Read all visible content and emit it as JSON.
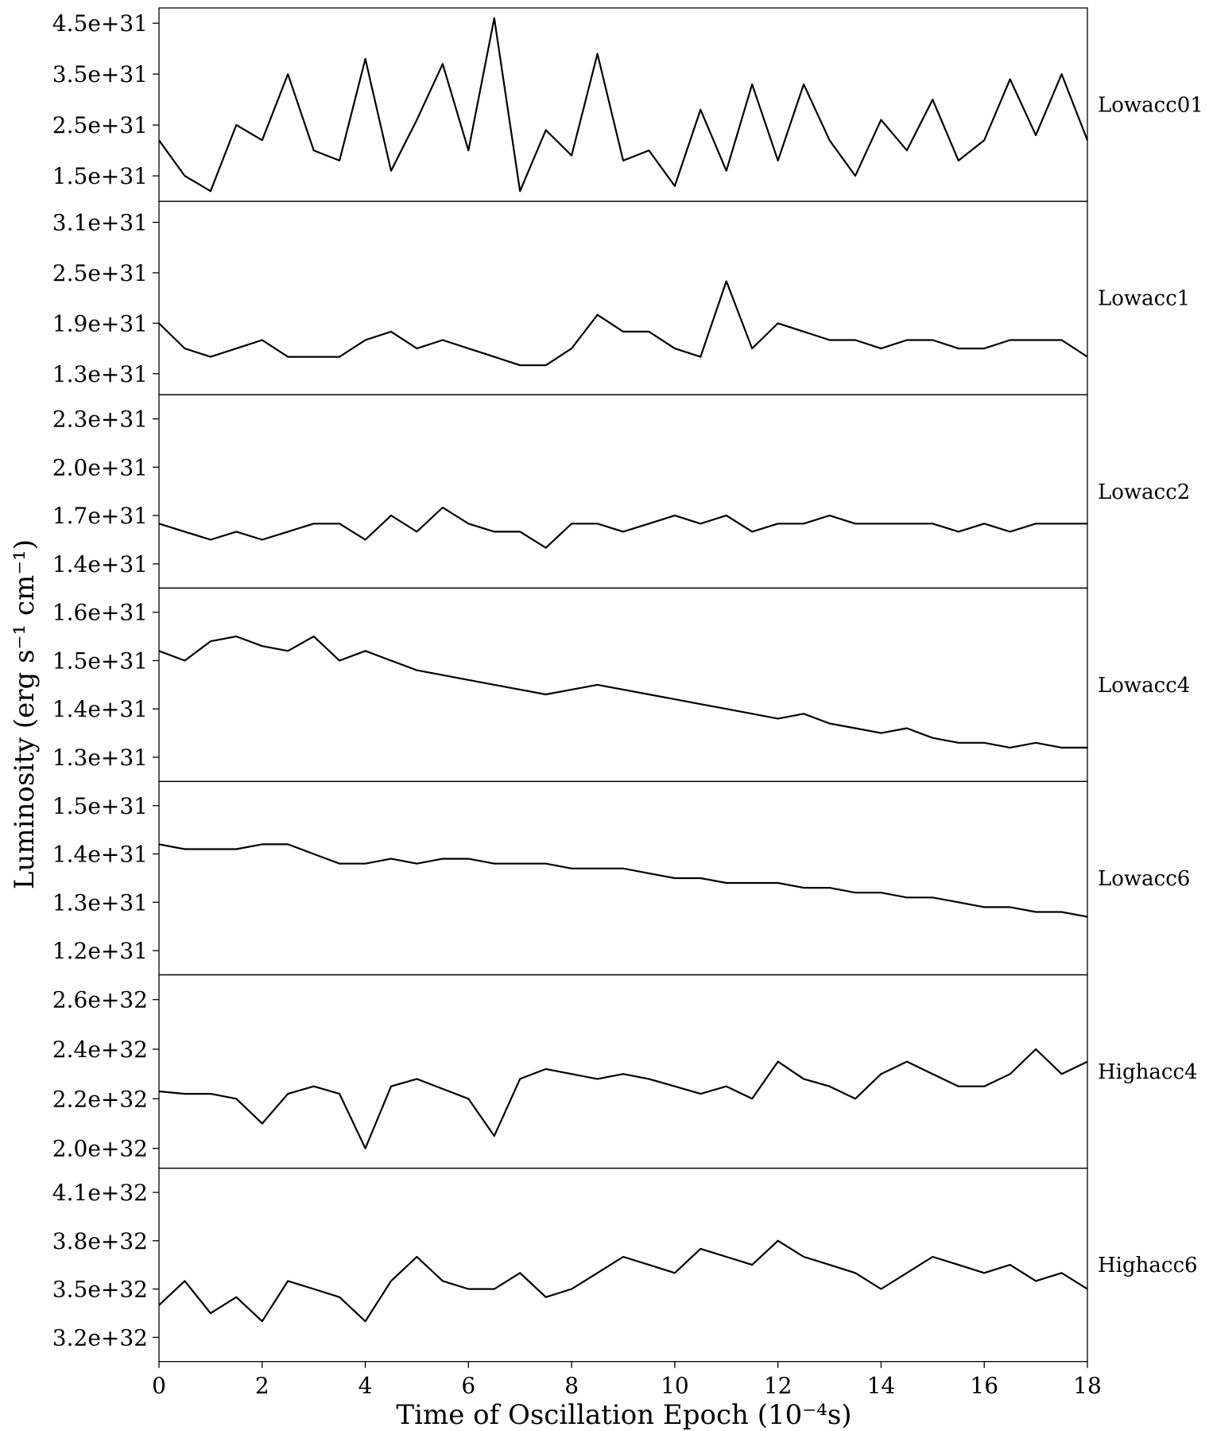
{
  "chart_data": {
    "type": "line",
    "xlabel": "Time of Oscillation Epoch (10⁻⁴s)",
    "ylabel": "Luminosity (erg s⁻¹ cm⁻¹)",
    "xlim": [
      0,
      18
    ],
    "x_ticks": [
      "0",
      "2",
      "4",
      "6",
      "8",
      "10",
      "12",
      "14",
      "16",
      "18"
    ],
    "x": [
      0,
      0.5,
      1,
      1.5,
      2,
      2.5,
      3,
      3.5,
      4,
      4.5,
      5,
      5.5,
      6,
      6.5,
      7,
      7.5,
      8,
      8.5,
      9,
      9.5,
      10,
      10.5,
      11,
      11.5,
      12,
      12.5,
      13,
      13.5,
      14,
      14.5,
      15,
      15.5,
      16,
      16.5,
      17,
      17.5,
      18
    ],
    "panels": [
      {
        "name": "Lowacc01",
        "ylim": [
          1e+31,
          4.8e+31
        ],
        "y_ticks": [
          "4.5e+31",
          "3.5e+31",
          "2.5e+31",
          "1.5e+31"
        ],
        "y_tick_values": [
          4.5e+31,
          3.5e+31,
          2.5e+31,
          1.5e+31
        ],
        "values": [
          2.2e+31,
          1.5e+31,
          1.2e+31,
          2.5e+31,
          2.2e+31,
          3.5e+31,
          2e+31,
          1.8e+31,
          3.8e+31,
          1.6e+31,
          2.6e+31,
          3.7e+31,
          2e+31,
          4.6e+31,
          1.2e+31,
          2.4e+31,
          1.9e+31,
          3.9e+31,
          1.8e+31,
          2e+31,
          1.3e+31,
          2.8e+31,
          1.6e+31,
          3.3e+31,
          1.8e+31,
          3.3e+31,
          2.2e+31,
          1.5e+31,
          2.6e+31,
          2e+31,
          3e+31,
          1.8e+31,
          2.2e+31,
          3.4e+31,
          2.3e+31,
          3.5e+31,
          2.2e+31
        ]
      },
      {
        "name": "Lowacc1",
        "ylim": [
          1.05e+31,
          3.35e+31
        ],
        "y_ticks": [
          "3.1e+31",
          "2.5e+31",
          "1.9e+31",
          "1.3e+31"
        ],
        "y_tick_values": [
          3.1e+31,
          2.5e+31,
          1.9e+31,
          1.3e+31
        ],
        "values": [
          1.9e+31,
          1.6e+31,
          1.5e+31,
          1.6e+31,
          1.7e+31,
          1.5e+31,
          1.5e+31,
          1.5e+31,
          1.7e+31,
          1.8e+31,
          1.6e+31,
          1.7e+31,
          1.6e+31,
          1.5e+31,
          1.4e+31,
          1.4e+31,
          1.6e+31,
          2e+31,
          1.8e+31,
          1.8e+31,
          1.6e+31,
          1.5e+31,
          2.4e+31,
          1.6e+31,
          1.9e+31,
          1.8e+31,
          1.7e+31,
          1.7e+31,
          1.6e+31,
          1.7e+31,
          1.7e+31,
          1.6e+31,
          1.6e+31,
          1.7e+31,
          1.7e+31,
          1.7e+31,
          1.5e+31
        ]
      },
      {
        "name": "Lowacc2",
        "ylim": [
          1.25e+31,
          2.45e+31
        ],
        "y_ticks": [
          "2.3e+31",
          "2.0e+31",
          "1.7e+31",
          "1.4e+31"
        ],
        "y_tick_values": [
          2.3e+31,
          2e+31,
          1.7e+31,
          1.4e+31
        ],
        "values": [
          1.65e+31,
          1.6e+31,
          1.55e+31,
          1.6e+31,
          1.55e+31,
          1.6e+31,
          1.65e+31,
          1.65e+31,
          1.55e+31,
          1.7e+31,
          1.6e+31,
          1.75e+31,
          1.65e+31,
          1.6e+31,
          1.6e+31,
          1.5e+31,
          1.65e+31,
          1.65e+31,
          1.6e+31,
          1.65e+31,
          1.7e+31,
          1.65e+31,
          1.7e+31,
          1.6e+31,
          1.65e+31,
          1.65e+31,
          1.7e+31,
          1.65e+31,
          1.65e+31,
          1.65e+31,
          1.65e+31,
          1.6e+31,
          1.65e+31,
          1.6e+31,
          1.65e+31,
          1.65e+31,
          1.65e+31
        ]
      },
      {
        "name": "Lowacc4",
        "ylim": [
          1.25e+31,
          1.65e+31
        ],
        "y_ticks": [
          "1.6e+31",
          "1.5e+31",
          "1.4e+31",
          "1.3e+31"
        ],
        "y_tick_values": [
          1.6e+31,
          1.5e+31,
          1.4e+31,
          1.3e+31
        ],
        "values": [
          1.52e+31,
          1.5e+31,
          1.54e+31,
          1.55e+31,
          1.53e+31,
          1.52e+31,
          1.55e+31,
          1.5e+31,
          1.52e+31,
          1.5e+31,
          1.48e+31,
          1.47e+31,
          1.46e+31,
          1.45e+31,
          1.44e+31,
          1.43e+31,
          1.44e+31,
          1.45e+31,
          1.44e+31,
          1.43e+31,
          1.42e+31,
          1.41e+31,
          1.4e+31,
          1.39e+31,
          1.38e+31,
          1.39e+31,
          1.37e+31,
          1.36e+31,
          1.35e+31,
          1.36e+31,
          1.34e+31,
          1.33e+31,
          1.33e+31,
          1.32e+31,
          1.33e+31,
          1.32e+31,
          1.32e+31
        ]
      },
      {
        "name": "Lowacc6",
        "ylim": [
          1.15e+31,
          1.55e+31
        ],
        "y_ticks": [
          "1.5e+31",
          "1.4e+31",
          "1.3e+31",
          "1.2e+31"
        ],
        "y_tick_values": [
          1.5e+31,
          1.4e+31,
          1.3e+31,
          1.2e+31
        ],
        "values": [
          1.42e+31,
          1.41e+31,
          1.41e+31,
          1.41e+31,
          1.42e+31,
          1.42e+31,
          1.4e+31,
          1.38e+31,
          1.38e+31,
          1.39e+31,
          1.38e+31,
          1.39e+31,
          1.39e+31,
          1.38e+31,
          1.38e+31,
          1.38e+31,
          1.37e+31,
          1.37e+31,
          1.37e+31,
          1.36e+31,
          1.35e+31,
          1.35e+31,
          1.34e+31,
          1.34e+31,
          1.34e+31,
          1.33e+31,
          1.33e+31,
          1.32e+31,
          1.32e+31,
          1.31e+31,
          1.31e+31,
          1.3e+31,
          1.29e+31,
          1.29e+31,
          1.28e+31,
          1.28e+31,
          1.27e+31
        ]
      },
      {
        "name": "Highacc4",
        "ylim": [
          1.92e+32,
          2.7e+32
        ],
        "y_ticks": [
          "2.6e+32",
          "2.4e+32",
          "2.2e+32",
          "2.0e+32"
        ],
        "y_tick_values": [
          2.6e+32,
          2.4e+32,
          2.2e+32,
          2e+32
        ],
        "values": [
          2.23e+32,
          2.22e+32,
          2.22e+32,
          2.2e+32,
          2.1e+32,
          2.22e+32,
          2.25e+32,
          2.22e+32,
          2e+32,
          2.25e+32,
          2.28e+32,
          2.24e+32,
          2.2e+32,
          2.05e+32,
          2.28e+32,
          2.32e+32,
          2.3e+32,
          2.28e+32,
          2.3e+32,
          2.28e+32,
          2.25e+32,
          2.22e+32,
          2.25e+32,
          2.2e+32,
          2.35e+32,
          2.28e+32,
          2.25e+32,
          2.2e+32,
          2.3e+32,
          2.35e+32,
          2.3e+32,
          2.25e+32,
          2.25e+32,
          2.3e+32,
          2.4e+32,
          2.3e+32,
          2.35e+32
        ]
      },
      {
        "name": "Highacc6",
        "ylim": [
          3.05e+32,
          4.25e+32
        ],
        "y_ticks": [
          "4.1e+32",
          "3.8e+32",
          "3.5e+32",
          "3.2e+32"
        ],
        "y_tick_values": [
          4.1e+32,
          3.8e+32,
          3.5e+32,
          3.2e+32
        ],
        "values": [
          3.4e+32,
          3.55e+32,
          3.35e+32,
          3.45e+32,
          3.3e+32,
          3.55e+32,
          3.5e+32,
          3.45e+32,
          3.3e+32,
          3.55e+32,
          3.7e+32,
          3.55e+32,
          3.5e+32,
          3.5e+32,
          3.6e+32,
          3.45e+32,
          3.5e+32,
          3.6e+32,
          3.7e+32,
          3.65e+32,
          3.6e+32,
          3.75e+32,
          3.7e+32,
          3.65e+32,
          3.8e+32,
          3.7e+32,
          3.65e+32,
          3.6e+32,
          3.5e+32,
          3.6e+32,
          3.7e+32,
          3.65e+32,
          3.6e+32,
          3.65e+32,
          3.55e+32,
          3.6e+32,
          3.5e+32
        ]
      }
    ]
  }
}
